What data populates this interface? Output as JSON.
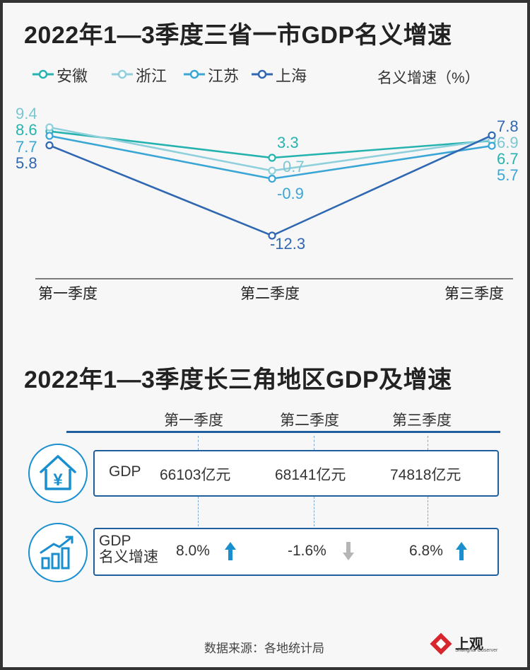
{
  "title1": "2022年1—3季度三省一市GDP名义增速",
  "title2": "2022年1—3季度长三角地区GDP及增速",
  "unit_label": "名义增速（%）",
  "colors": {
    "anhui": "#26b3b0",
    "zhejiang": "#8fd0dc",
    "jiangsu": "#3aa6d6",
    "shanghai": "#2f67b2",
    "rule": "#1f5f9e",
    "up": "#1a8fd0",
    "down": "#b5b5b5"
  },
  "chart_data": [
    {
      "type": "line",
      "title": "2022年1—3季度三省一市GDP名义增速",
      "ylabel": "名义增速（%）",
      "categories": [
        "第一季度",
        "第二季度",
        "第三季度"
      ],
      "ylim": [
        -14,
        10
      ],
      "legend": "top-left",
      "grid": false,
      "series": [
        {
          "name": "安徽",
          "color": "#26b3b0",
          "values": [
            8.6,
            3.3,
            6.7
          ],
          "labels": [
            "8.6",
            "3.3",
            "6.7"
          ]
        },
        {
          "name": "浙江",
          "color": "#8fd0dc",
          "values": [
            9.4,
            0.7,
            6.9
          ],
          "labels": [
            "9.4",
            "0.7",
            "6.9"
          ]
        },
        {
          "name": "江苏",
          "color": "#3aa6d6",
          "values": [
            7.7,
            -0.9,
            5.7
          ],
          "labels": [
            "7.7",
            "-0.9",
            "5.7"
          ]
        },
        {
          "name": "上海",
          "color": "#2f67b2",
          "values": [
            5.8,
            -12.3,
            7.8
          ],
          "labels": [
            "5.8",
            "-12.3",
            "7.8"
          ]
        }
      ]
    },
    {
      "type": "table",
      "title": "2022年1—3季度长三角地区GDP及增速",
      "columns": [
        "第一季度",
        "第二季度",
        "第三季度"
      ],
      "rows": [
        {
          "label": "GDP",
          "values": [
            "66103亿元",
            "68141亿元",
            "74818亿元"
          ]
        },
        {
          "label_line1": "GDP",
          "label_line2": "名义增速",
          "values": [
            "8.0%",
            "-1.6%",
            "6.8%"
          ],
          "directions": [
            "up",
            "down",
            "up"
          ]
        }
      ]
    }
  ],
  "icons": {
    "gdp_row": "house-yen-icon",
    "growth_row": "growth-bars-icon",
    "logo": "shanghai-observer-logo-icon"
  },
  "source": "数据来源：各地统计局",
  "logo": {
    "text": "上观",
    "sub": "Shanghai Observer"
  }
}
